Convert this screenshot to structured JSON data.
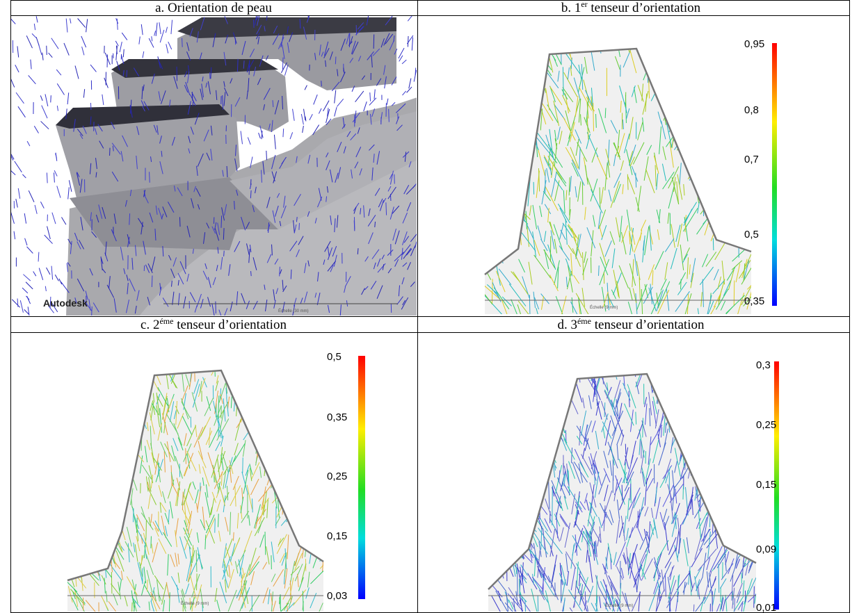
{
  "panels": [
    {
      "caption": {
        "prefix": "a. Orientation de peau"
      },
      "logo": "Autodesk",
      "scale": "Échelle (30 mm)"
    },
    {
      "caption": {
        "prefix": "b. 1",
        "sup": "er",
        "suffix": " tenseur d’orientation"
      },
      "scale": "Échelle (9 mm)",
      "colorbar": [
        "0,95",
        "0,8",
        "0,7",
        "0,5",
        "0,35"
      ]
    },
    {
      "caption": {
        "prefix": "c. 2",
        "sup": "éme",
        "suffix": " tenseur d’orientation"
      },
      "scale": "Échelle (9 mm)",
      "colorbar": [
        "0,5",
        "0,35",
        "0,25",
        "0,15",
        "0,03"
      ]
    },
    {
      "caption": {
        "prefix": "d. 3",
        "sup": "éme",
        "suffix": " tenseur d’orientation"
      },
      "scale": "Échelle (9 mm)",
      "colorbar": [
        "0,3",
        "0,25",
        "0,15",
        "0,09",
        "0,01"
      ]
    }
  ]
}
